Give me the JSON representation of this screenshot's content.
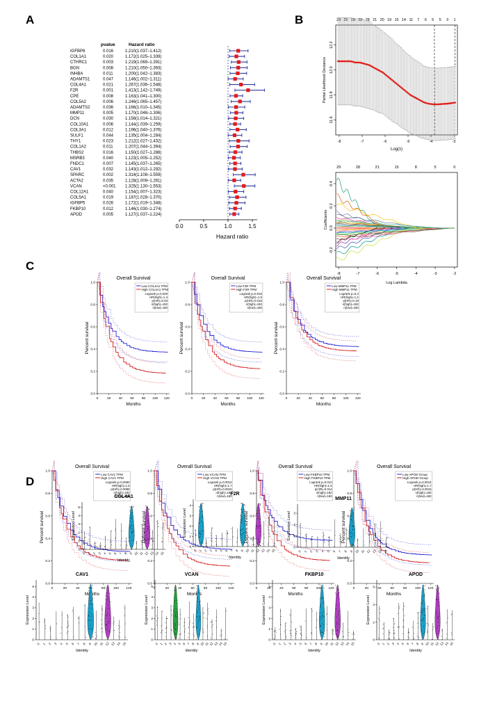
{
  "panel_labels": {
    "a": "A",
    "b": "B",
    "c": "C",
    "d": "D"
  },
  "colors": {
    "forest_marker": "#e41a1c",
    "forest_ci": "#2b3a9c",
    "lasso_point": "#e0201b",
    "km_low": "#2424d8",
    "km_high": "#d42020",
    "violin_cyan": "#1aa0c8",
    "violin_magenta": "#b040c0",
    "violin_green": "#2aa040"
  },
  "chart_data": [
    {
      "type": "forest",
      "title": "",
      "col_headers": {
        "pvalue": "pvalue",
        "hr": "Hazard ratio"
      },
      "xlabel": "Hazard ratio",
      "xticks": [
        "0.0",
        "0.5",
        "1.0",
        "1.5"
      ],
      "xlim": [
        0,
        1.6
      ],
      "ref_line": 1.0,
      "rows": [
        {
          "gene": "IGFBP6",
          "p": "0.016",
          "hr_text": "1.210(1.037–1.412)",
          "hr": 1.21,
          "lo": 1.037,
          "hi": 1.412
        },
        {
          "gene": "COL1A1",
          "p": "0.020",
          "hr_text": "1.172(1.025–1.339)",
          "hr": 1.172,
          "lo": 1.025,
          "hi": 1.339
        },
        {
          "gene": "CTHRC1",
          "p": "0.003",
          "hr_text": "1.219(1.069–1.391)",
          "hr": 1.219,
          "lo": 1.069,
          "hi": 1.391
        },
        {
          "gene": "BGN",
          "p": "0.008",
          "hr_text": "1.210(1.050–1.393)",
          "hr": 1.21,
          "lo": 1.05,
          "hi": 1.393
        },
        {
          "gene": "INHBA",
          "p": "0.011",
          "hr_text": "1.200(1.042–1.383)",
          "hr": 1.2,
          "lo": 1.042,
          "hi": 1.383
        },
        {
          "gene": "ADAMTS1",
          "p": "0.047",
          "hr_text": "1.146(1.002–1.311)",
          "hr": 1.146,
          "lo": 1.002,
          "hi": 1.311
        },
        {
          "gene": "COL4A1",
          "p": "0.021",
          "hr_text": "1.267(1.036–1.548)",
          "hr": 1.267,
          "lo": 1.036,
          "hi": 1.548
        },
        {
          "gene": "F2R",
          "p": "0.001",
          "hr_text": "1.413(1.142–1.749)",
          "hr": 1.413,
          "lo": 1.142,
          "hi": 1.749
        },
        {
          "gene": "CPE",
          "p": "0.008",
          "hr_text": "1.163(1.041–1.300)",
          "hr": 1.163,
          "lo": 1.041,
          "hi": 1.3
        },
        {
          "gene": "COL5A2",
          "p": "0.006",
          "hr_text": "1.246(1.065–1.457)",
          "hr": 1.246,
          "lo": 1.065,
          "hi": 1.457
        },
        {
          "gene": "ADAMTS2",
          "p": "0.036",
          "hr_text": "1.166(1.010–1.345)",
          "hr": 1.166,
          "lo": 1.01,
          "hi": 1.345
        },
        {
          "gene": "MMP11",
          "p": "0.005",
          "hr_text": "1.170(1.048–1.306)",
          "hr": 1.17,
          "lo": 1.048,
          "hi": 1.306
        },
        {
          "gene": "DCN",
          "p": "0.030",
          "hr_text": "1.158(1.014–1.321)",
          "hr": 1.158,
          "lo": 1.014,
          "hi": 1.321
        },
        {
          "gene": "COL10A1",
          "p": "0.006",
          "hr_text": "1.144(1.039–1.259)",
          "hr": 1.144,
          "lo": 1.039,
          "hi": 1.259
        },
        {
          "gene": "COL3A1",
          "p": "0.012",
          "hr_text": "1.196(1.040–1.376)",
          "hr": 1.196,
          "lo": 1.04,
          "hi": 1.376
        },
        {
          "gene": "SULF1",
          "p": "0.044",
          "hr_text": "1.135(1.004–1.284)",
          "hr": 1.135,
          "lo": 1.004,
          "hi": 1.284
        },
        {
          "gene": "THY1",
          "p": "0.023",
          "hr_text": "1.212(1.027–1.432)",
          "hr": 1.212,
          "lo": 1.027,
          "hi": 1.432
        },
        {
          "gene": "COL1A2",
          "p": "0.011",
          "hr_text": "1.207(1.044–1.394)",
          "hr": 1.207,
          "lo": 1.044,
          "hi": 1.394
        },
        {
          "gene": "THBS2",
          "p": "0.016",
          "hr_text": "1.150(1.027–1.288)",
          "hr": 1.15,
          "lo": 1.027,
          "hi": 1.288
        },
        {
          "gene": "MSRB3",
          "p": "0.040",
          "hr_text": "1.123(1.005–1.252)",
          "hr": 1.123,
          "lo": 1.005,
          "hi": 1.252
        },
        {
          "gene": "FNDC1",
          "p": "0.007",
          "hr_text": "1.145(1.037–1.265)",
          "hr": 1.145,
          "lo": 1.037,
          "hi": 1.265
        },
        {
          "gene": "CAV1",
          "p": "0.032",
          "hr_text": "1.143(1.012–1.292)",
          "hr": 1.143,
          "lo": 1.012,
          "hi": 1.292
        },
        {
          "gene": "SPARC",
          "p": "0.002",
          "hr_text": "1.314(1.108–1.559)",
          "hr": 1.314,
          "lo": 1.108,
          "hi": 1.559
        },
        {
          "gene": "ACTA2",
          "p": "0.035",
          "hr_text": "1.128(1.009–1.261)",
          "hr": 1.128,
          "lo": 1.009,
          "hi": 1.261
        },
        {
          "gene": "VCAN",
          "p": "<0.001",
          "hr_text": "1.325(1.130–1.553)",
          "hr": 1.325,
          "lo": 1.13,
          "hi": 1.553
        },
        {
          "gene": "COL12A1",
          "p": "0.040",
          "hr_text": "1.154(1.007–1.323)",
          "hr": 1.154,
          "lo": 1.007,
          "hi": 1.323
        },
        {
          "gene": "COL5A1",
          "p": "0.019",
          "hr_text": "1.187(1.028–1.370)",
          "hr": 1.187,
          "lo": 1.028,
          "hi": 1.37
        },
        {
          "gene": "IGFBP5",
          "p": "0.026",
          "hr_text": "1.172(1.019–1.348)",
          "hr": 1.172,
          "lo": 1.019,
          "hi": 1.348
        },
        {
          "gene": "FKBP10",
          "p": "0.012",
          "hr_text": "1.146(1.030–1.274)",
          "hr": 1.146,
          "lo": 1.03,
          "hi": 1.274
        },
        {
          "gene": "APOD",
          "p": "0.005",
          "hr_text": "1.127(1.037–1.224)",
          "hr": 1.127,
          "lo": 1.037,
          "hi": 1.224
        }
      ]
    },
    {
      "type": "line",
      "title": "",
      "xlabel": "Log(λ)",
      "ylabel": "Partial Likelihood Deviance",
      "top_ticks": [
        "29",
        "29",
        "28",
        "28",
        "28",
        "21",
        "20",
        "19",
        "15",
        "14",
        "11",
        "7",
        "6",
        "5",
        "5",
        "3",
        "1"
      ],
      "xticks": [
        "-8",
        "-7",
        "-6",
        "-5",
        "-4",
        "-3"
      ],
      "yticks": [
        "11.6",
        "11.8",
        "12.0",
        "12.2"
      ],
      "xlim": [
        -8.15,
        -2.85
      ],
      "ylim": [
        11.48,
        12.36
      ],
      "vlines": [
        -3.85,
        -2.95
      ],
      "x": [
        -8.1,
        -7.9,
        -7.7,
        -7.5,
        -7.3,
        -7.1,
        -6.9,
        -6.7,
        -6.5,
        -6.3,
        -6.1,
        -5.9,
        -5.7,
        -5.5,
        -5.3,
        -5.1,
        -4.9,
        -4.7,
        -4.5,
        -4.3,
        -4.1,
        -3.9,
        -3.7,
        -3.5,
        -3.3,
        -3.1,
        -2.9
      ],
      "y": [
        12.07,
        12.07,
        12.07,
        12.07,
        12.06,
        12.06,
        12.05,
        12.04,
        12.02,
        12.0,
        11.98,
        11.95,
        11.92,
        11.89,
        11.86,
        11.83,
        11.8,
        11.78,
        11.76,
        11.74,
        11.73,
        11.725,
        11.725,
        11.728,
        11.73,
        11.735,
        11.74
      ],
      "err": [
        0.35,
        0.35,
        0.35,
        0.35,
        0.35,
        0.35,
        0.35,
        0.35,
        0.34,
        0.34,
        0.33,
        0.33,
        0.33,
        0.32,
        0.32,
        0.31,
        0.31,
        0.3,
        0.3,
        0.29,
        0.29,
        0.29,
        0.29,
        0.29,
        0.29,
        0.29,
        0.29
      ]
    },
    {
      "type": "line",
      "title": "",
      "xlabel": "Log Lambda",
      "ylabel": "Coefficients",
      "top_ticks": [
        "29",
        "28",
        "21",
        "15",
        "8",
        "5",
        "0"
      ],
      "xticks": [
        "-8",
        "-7",
        "-6",
        "-5",
        "-4",
        "-3",
        "-2"
      ],
      "yticks": [
        "-0.2",
        "0.0",
        "0.2",
        "0.4"
      ],
      "xlim": [
        -8.15,
        -1.85
      ],
      "ylim": [
        -0.35,
        0.5
      ],
      "note": "30 coefficient paths shrinking to zero"
    },
    {
      "type": "kaplan-meier",
      "panels": [
        {
          "title": "Overall Survival",
          "legend_low": "Low COL4A1 TPM",
          "legend_high": "High COL4A1 TPM",
          "stats": [
            "Logrank p=0.029",
            "HR(high)=1.4",
            "p(HR)=0.03",
            "n(high)=182",
            "n(low)=180"
          ],
          "xmax": 125,
          "xticks": [
            "0",
            "20",
            "40",
            "60",
            "80",
            "100",
            "120"
          ]
        },
        {
          "title": "Overall Survival",
          "legend_low": "Low F2R TPM",
          "legend_high": "High F2R TPM",
          "stats": [
            "Logrank p=0.015",
            "HR(high)=1.5",
            "p(HR)=0.015",
            "n(high)=182",
            "n(low)=180"
          ],
          "xmax": 125,
          "xticks": [
            "0",
            "20",
            "40",
            "60",
            "80",
            "100",
            "120"
          ]
        },
        {
          "title": "Overall Survival",
          "legend_low": "Low MMP11 TPM",
          "legend_high": "High MMP11 TPM",
          "stats": [
            "Logrank p=0.2",
            "HR(high)=1.2",
            "p(HR)=0.19",
            "n(high)=182",
            "n(low)=180"
          ],
          "xmax": 125,
          "xticks": [
            "0",
            "20",
            "40",
            "60",
            "80",
            "100",
            "120"
          ]
        },
        {
          "title": "Overall Survival",
          "legend_low": "Low CAV1 TPM",
          "legend_high": "High CAV1 TPM",
          "stats": [
            "Logrank p=0.0083",
            "HR(high)=1.6",
            "p(HR)=0.0089",
            "n(high)=182",
            "n(low)=182"
          ],
          "xmax": 125,
          "xticks": [
            "0",
            "20",
            "40",
            "60",
            "80",
            "100",
            "120"
          ]
        },
        {
          "title": "Overall Survival",
          "legend_low": "Low VCAN TPM",
          "legend_high": "High VCAN TPM",
          "stats": [
            "Logrank p=0.0014",
            "HR(high)=1.7",
            "p(HR)=0.0016",
            "n(high)=182",
            "n(low)=182"
          ],
          "xmax": 125,
          "xticks": [
            "0",
            "20",
            "40",
            "60",
            "80",
            "100",
            "120"
          ]
        },
        {
          "title": "Overall Survival",
          "legend_low": "Low FKBP10 TPM",
          "legend_high": "High FKBP10 TPM",
          "stats": [
            "Logrank p=0.013",
            "HR(high)=1.5",
            "p(HR)=0.014",
            "n(high)=182",
            "n(low)=182"
          ],
          "xmax": 125,
          "xticks": [
            "0",
            "20",
            "40",
            "60",
            "80",
            "100",
            "120"
          ]
        },
        {
          "title": "Overall Survival",
          "legend_low": "Low APOD Group",
          "legend_high": "High APOD Group",
          "stats": [
            "Logrank p=0.0014",
            "HR(high)=1.7",
            "p(HR)=0.0015",
            "n(high)=182",
            "n(low)=182"
          ],
          "xmax": 125,
          "xticks": [
            "0",
            "20",
            "40",
            "60",
            "80",
            "100",
            "120"
          ]
        }
      ],
      "xlabel": "Months",
      "ylabel": "Percent survival",
      "yticks": [
        "0.0",
        "0.2",
        "0.4",
        "0.6",
        "0.8",
        "1.0"
      ]
    },
    {
      "type": "violin",
      "xlabel": "Identity",
      "ylabel": "Expression Level",
      "categories": [
        "0",
        "1",
        "2",
        "3",
        "4",
        "5",
        "6",
        "7",
        "8",
        "9",
        "10",
        "11",
        "12",
        "13",
        "14",
        "15"
      ],
      "panels": [
        {
          "gene": "COL4A1",
          "yticks": [
            "0",
            "1",
            "2",
            "3",
            "4",
            "5"
          ],
          "ymax": 5.6,
          "big": {
            "9": "cyan",
            "12": "magenta"
          }
        },
        {
          "gene": "F2R",
          "yticks": [
            "0",
            "1",
            "2",
            "3",
            "4"
          ],
          "ymax": 4.6,
          "big": {
            "1": "cyan",
            "9": "cyan",
            "12": "magenta"
          }
        },
        {
          "gene": "MMP11",
          "yticks": [
            "0",
            "1",
            "2",
            "3"
          ],
          "ymax": 3.8,
          "big": {
            "9": "cyan"
          }
        },
        {
          "gene": "CAV1",
          "yticks": [
            "0",
            "1",
            "2",
            "3",
            "4",
            "5"
          ],
          "ymax": 5.6,
          "big": {
            "9": "cyan",
            "12": "magenta"
          }
        },
        {
          "gene": "VCAN",
          "yticks": [
            "0",
            "1",
            "2",
            "3",
            "4",
            "5"
          ],
          "ymax": 5.6,
          "big": {
            "4": "green",
            "9": "cyan"
          }
        },
        {
          "gene": "FKBP10",
          "yticks": [
            "0",
            "1",
            "2",
            "3",
            "4",
            "5"
          ],
          "ymax": 5.6,
          "big": {
            "9": "cyan",
            "12": "magenta"
          }
        },
        {
          "gene": "APOD",
          "yticks": [
            "0",
            "2",
            "4",
            "6"
          ],
          "ymax": 6.8,
          "big": {
            "9": "cyan",
            "12": "magenta"
          }
        }
      ]
    }
  ]
}
